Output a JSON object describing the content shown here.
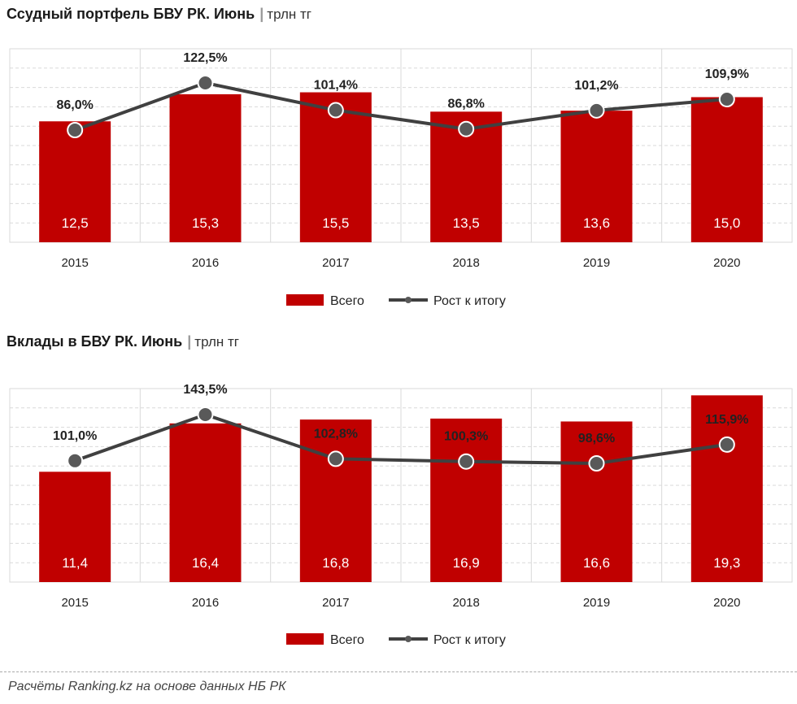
{
  "colors": {
    "bar": "#c00000",
    "line": "#404040",
    "marker": "#595959",
    "grid": "#d9d9d9"
  },
  "chart_data": [
    {
      "type": "bar",
      "title": "Ссудный портфель БВУ РК. Июнь",
      "unit": "трлн тг",
      "categories": [
        "2015",
        "2016",
        "2017",
        "2018",
        "2019",
        "2020"
      ],
      "series": [
        {
          "name": "Всего",
          "type": "bar",
          "values": [
            12.5,
            15.3,
            15.5,
            13.5,
            13.6,
            15.0
          ],
          "labels": [
            "12,5",
            "15,3",
            "15,5",
            "13,5",
            "13,6",
            "15,0"
          ]
        },
        {
          "name": "Рост к итогу",
          "type": "line",
          "values": [
            86.0,
            122.5,
            101.4,
            86.8,
            101.2,
            109.9
          ],
          "labels": [
            "86,0%",
            "122,5%",
            "101,4%",
            "86,8%",
            "101,2%",
            "109,9%"
          ]
        }
      ],
      "ylim": [
        0,
        20
      ],
      "grid": true,
      "legend": "bottom"
    },
    {
      "type": "bar",
      "title": "Вклады в БВУ РК. Июнь",
      "unit": "трлн тг",
      "categories": [
        "2015",
        "2016",
        "2017",
        "2018",
        "2019",
        "2020"
      ],
      "series": [
        {
          "name": "Всего",
          "type": "bar",
          "values": [
            11.4,
            16.4,
            16.8,
            16.9,
            16.6,
            19.3
          ],
          "labels": [
            "11,4",
            "16,4",
            "16,8",
            "16,9",
            "16,6",
            "19,3"
          ]
        },
        {
          "name": "Рост к итогу",
          "type": "line",
          "values": [
            101.0,
            143.5,
            102.8,
            100.3,
            98.6,
            115.9
          ],
          "labels": [
            "101,0%",
            "143,5%",
            "102,8%",
            "100,3%",
            "98,6%",
            "115,9%"
          ]
        }
      ],
      "ylim": [
        0,
        20
      ],
      "grid": true,
      "legend": "bottom"
    }
  ],
  "footer": "Расчёты Ranking.kz на основе данных НБ РК"
}
